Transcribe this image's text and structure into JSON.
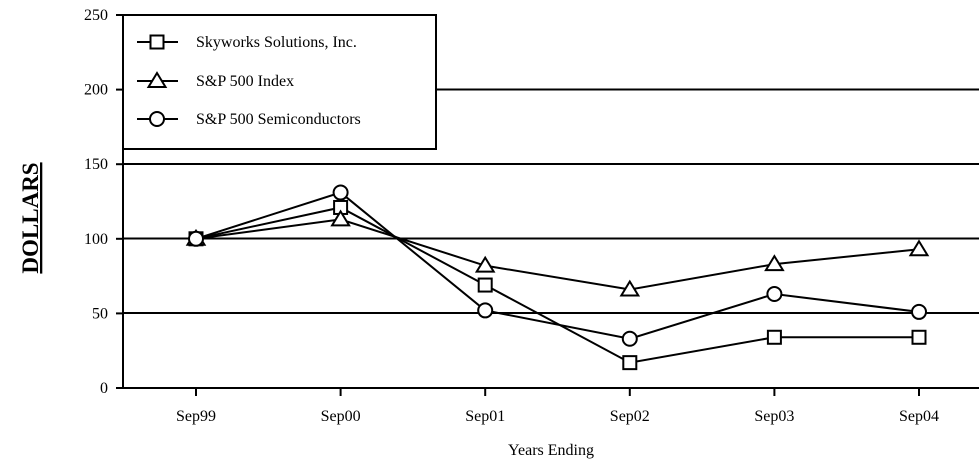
{
  "chart_data": {
    "type": "line",
    "categories": [
      "Sep99",
      "Sep00",
      "Sep01",
      "Sep02",
      "Sep03",
      "Sep04"
    ],
    "series": [
      {
        "name": "Skyworks Solutions, Inc.",
        "marker": "square",
        "values": [
          100,
          121,
          69,
          17,
          34,
          34
        ]
      },
      {
        "name": "S&P 500 Index",
        "marker": "triangle",
        "values": [
          100,
          113,
          82,
          66,
          83,
          93
        ]
      },
      {
        "name": "S&P 500 Semiconductors",
        "marker": "circle",
        "values": [
          100,
          131,
          52,
          33,
          63,
          51
        ]
      }
    ],
    "xlabel": "Years Ending",
    "ylabel": "DOLLARS",
    "ylim": [
      0,
      250
    ],
    "yticks": [
      0,
      50,
      100,
      150,
      200,
      250
    ],
    "grid": true,
    "legend_position": "top-left"
  }
}
